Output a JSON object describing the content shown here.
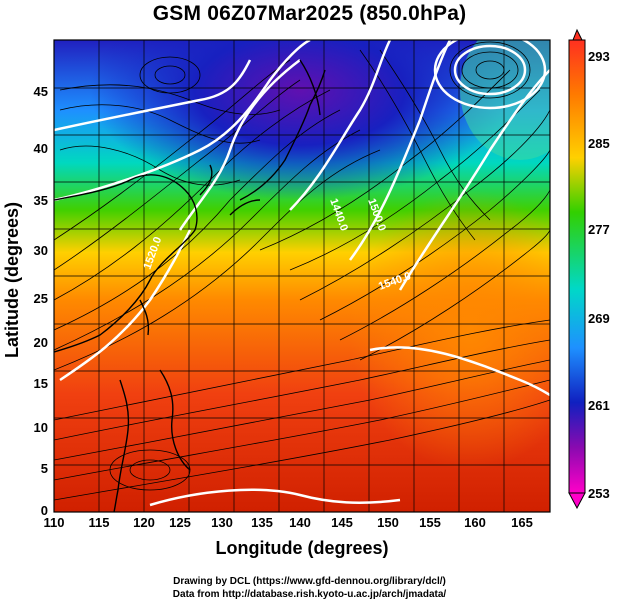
{
  "title": "GSM 06Z07Mar2025 (850.0hPa)",
  "axes": {
    "xlabel": "Longitude (degrees)",
    "ylabel": "Latitude  (degrees)",
    "x_ticks": [
      "110",
      "115",
      "120",
      "125",
      "130",
      "135",
      "140",
      "145",
      "150",
      "155",
      "160",
      "165"
    ],
    "y_ticks": [
      "45",
      "40",
      "35",
      "30",
      "25",
      "20",
      "15",
      "10",
      "5",
      "0"
    ]
  },
  "colorbar": {
    "ticks": [
      "293",
      "285",
      "277",
      "269",
      "261",
      "253"
    ],
    "colors": [
      "#ff3020",
      "#ff7a00",
      "#ffd000",
      "#32d000",
      "#00d8c8",
      "#1e90ff",
      "#1020c0",
      "#8a0ab0",
      "#ff00c8"
    ]
  },
  "contour_labels": [
    "1440.0",
    "1500.0",
    "1520.0",
    "1540.0"
  ],
  "credits": {
    "line1": "Drawing by DCL (https://www.gfd-dennou.org/library/dcl/)",
    "line2": "Data from http://database.rish.kyoto-u.ac.jp/arch/jmadata/"
  }
}
